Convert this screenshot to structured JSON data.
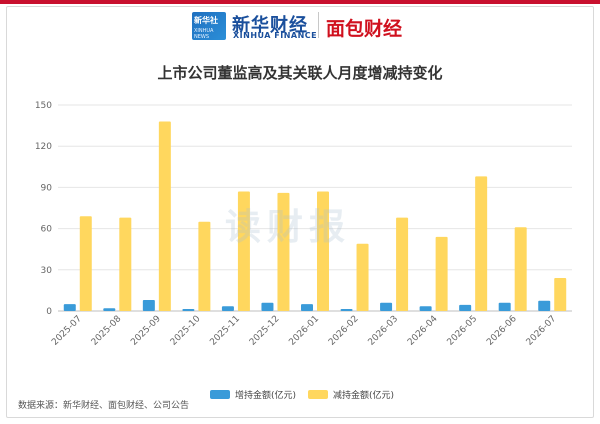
{
  "header": {
    "logo_box_text": "新华社",
    "logo_box_sub": "XINHUA NEWS",
    "brand_cn": "新华财经",
    "brand_en": "XINHUA FINANCE",
    "partner_brand": "面包财经"
  },
  "watermark": "读财报",
  "source": "数据来源：新华财经、面包财经、公司公告",
  "colors": {
    "increase": "#3a9bd9",
    "decrease": "#ffd75e",
    "accent": "#c8102e"
  },
  "chart_data": {
    "type": "bar",
    "title": "上市公司董监高及其关联人月度增减持变化",
    "xlabel": "",
    "ylabel": "",
    "ylim": [
      0,
      150
    ],
    "yticks": [
      0,
      30,
      60,
      90,
      120,
      150
    ],
    "grid": true,
    "legend_position": "bottom",
    "categories": [
      "2025-07",
      "2025-08",
      "2025-09",
      "2025-10",
      "2025-11",
      "2025-12",
      "2026-01",
      "2026-02",
      "2026-03",
      "2026-04",
      "2026-05",
      "2026-06",
      "2026-07"
    ],
    "series": [
      {
        "name": "增持金额(亿元)",
        "values": [
          5,
          2,
          8,
          1.5,
          3.5,
          6,
          5,
          1.5,
          6,
          3.5,
          4.5,
          6,
          7.5
        ]
      },
      {
        "name": "减持金额(亿元)",
        "values": [
          69,
          68,
          138,
          65,
          87,
          86,
          87,
          49,
          68,
          54,
          98,
          61,
          24
        ]
      }
    ]
  }
}
